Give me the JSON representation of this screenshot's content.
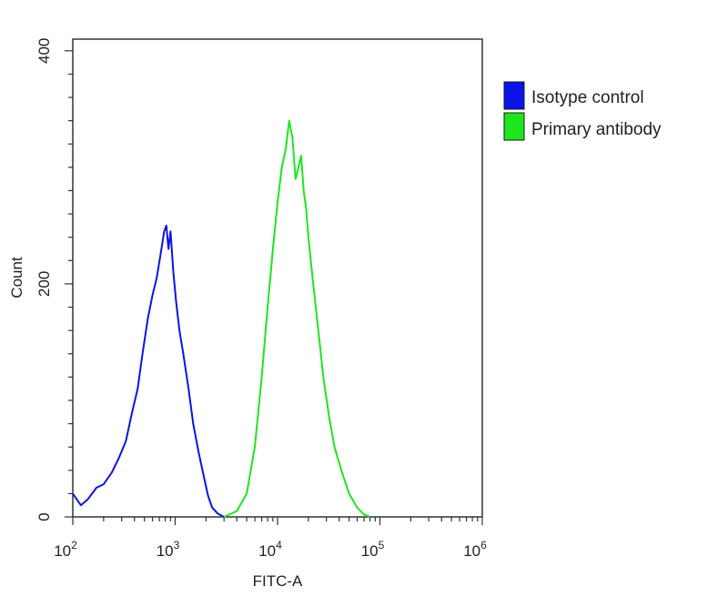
{
  "chart_data": {
    "type": "line",
    "xlabel": "FITC-A",
    "ylabel": "Count",
    "x_scale": "log",
    "xlim": [
      100,
      1000000
    ],
    "ylim": [
      0,
      410
    ],
    "x_major_ticks": [
      {
        "value": 100,
        "base": "10",
        "exp": "2"
      },
      {
        "value": 1000,
        "base": "10",
        "exp": "3"
      },
      {
        "value": 10000,
        "base": "10",
        "exp": "4"
      },
      {
        "value": 100000,
        "base": "10",
        "exp": "5"
      },
      {
        "value": 1000000,
        "base": "10",
        "exp": "6"
      }
    ],
    "y_ticks": [
      {
        "value": 0,
        "label": "0"
      },
      {
        "value": 200,
        "label": "200"
      },
      {
        "value": 400,
        "label": "400"
      }
    ],
    "legend_position": "top-right",
    "legend": [
      {
        "label": "Isotype control",
        "color": "#0a14e6"
      },
      {
        "label": "Primary antibody",
        "color": "#1ee61e"
      }
    ],
    "series": [
      {
        "name": "Isotype control",
        "color": "#0a14e6",
        "x": [
          100,
          120,
          140,
          170,
          200,
          240,
          280,
          330,
          380,
          430,
          480,
          540,
          600,
          660,
          720,
          780,
          820,
          860,
          900,
          960,
          1020,
          1100,
          1200,
          1350,
          1500,
          1700,
          1900,
          2100,
          2300,
          2600,
          3000
        ],
        "y": [
          20,
          10,
          15,
          25,
          28,
          38,
          50,
          65,
          90,
          110,
          140,
          170,
          190,
          205,
          225,
          245,
          250,
          230,
          245,
          210,
          185,
          160,
          140,
          110,
          80,
          55,
          35,
          18,
          8,
          3,
          0
        ]
      },
      {
        "name": "Primary antibody",
        "color": "#1ee61e",
        "x": [
          3000,
          4000,
          5000,
          6000,
          7000,
          8000,
          9000,
          10000,
          11000,
          12000,
          13000,
          14000,
          15000,
          16000,
          17000,
          18000,
          19000,
          20000,
          22000,
          25000,
          28000,
          32000,
          36000,
          42000,
          50000,
          60000,
          70000,
          80000
        ],
        "y": [
          0,
          5,
          20,
          60,
          120,
          180,
          230,
          270,
          300,
          315,
          340,
          325,
          290,
          300,
          310,
          280,
          265,
          240,
          205,
          160,
          120,
          85,
          60,
          40,
          20,
          8,
          2,
          0
        ]
      }
    ]
  }
}
